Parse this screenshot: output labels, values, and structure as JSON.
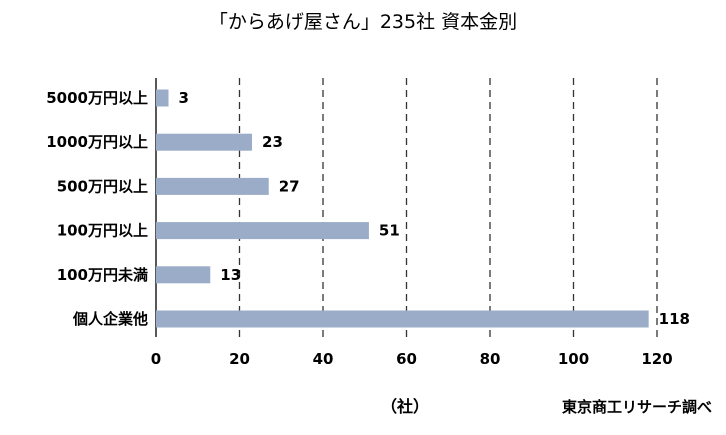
{
  "chart_data": {
    "type": "bar",
    "orientation": "horizontal",
    "title": "「からあげ屋さん」235社  資本金別",
    "categories": [
      "5000万円以上",
      "1000万円以上",
      "500万円以上",
      "100万円以上",
      "100万円未満",
      "個人企業他"
    ],
    "values": [
      3,
      23,
      27,
      51,
      13,
      118
    ],
    "xlim": [
      0,
      120
    ],
    "xticks": [
      "0",
      "20",
      "40",
      "60",
      "80",
      "100",
      "120"
    ],
    "xlabel": "（社）",
    "grid": "vertical-dashed",
    "bar_color": "#9aacc8",
    "source": "東京商工リサーチ調べ"
  }
}
